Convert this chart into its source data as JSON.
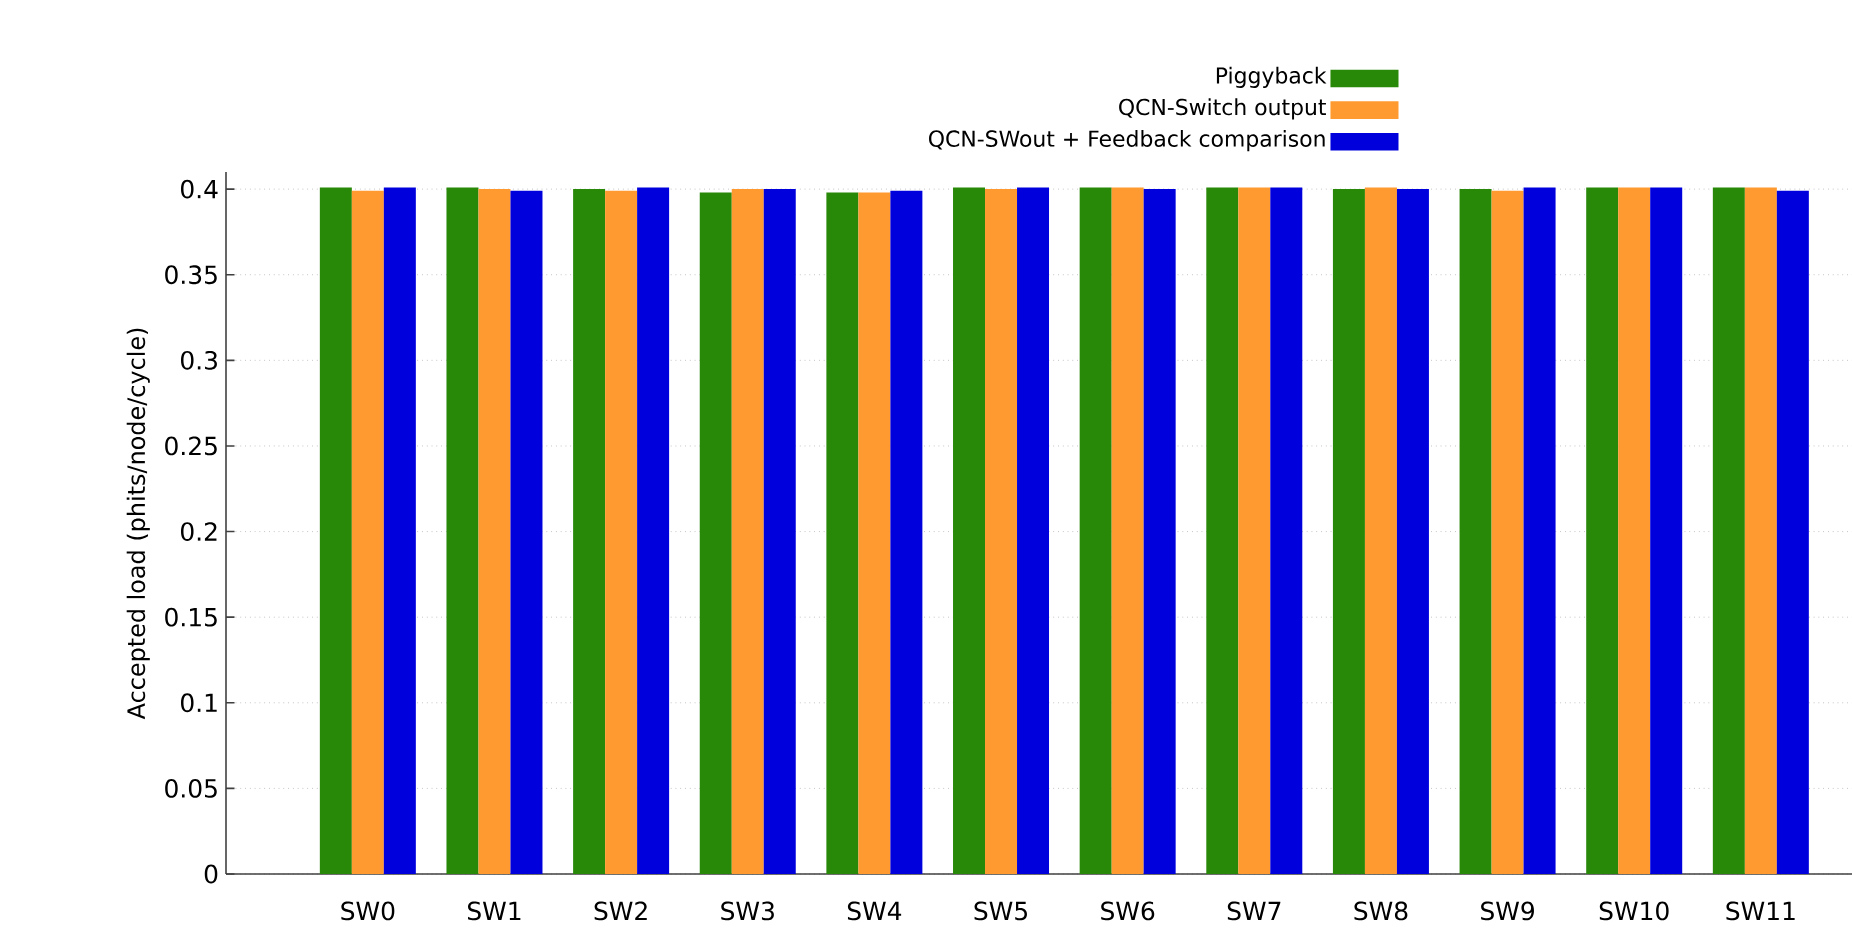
{
  "chart_data": {
    "type": "bar",
    "ylabel": "Accepted load (phits/node/cycle)",
    "categories": [
      "SW0",
      "SW1",
      "SW2",
      "SW3",
      "SW4",
      "SW5",
      "SW6",
      "SW7",
      "SW8",
      "SW9",
      "SW10",
      "SW11"
    ],
    "series": [
      {
        "name": "Piggyback",
        "color": "#288808",
        "values": [
          0.401,
          0.401,
          0.4,
          0.398,
          0.398,
          0.401,
          0.401,
          0.401,
          0.4,
          0.4,
          0.401,
          0.401
        ]
      },
      {
        "name": "QCN-Switch output",
        "color": "#ff9a30",
        "values": [
          0.399,
          0.4,
          0.399,
          0.4,
          0.398,
          0.4,
          0.401,
          0.401,
          0.401,
          0.399,
          0.401,
          0.401
        ]
      },
      {
        "name": "QCN-SWout + Feedback comparison",
        "color": "#0000dd",
        "values": [
          0.401,
          0.399,
          0.401,
          0.4,
          0.399,
          0.401,
          0.4,
          0.401,
          0.4,
          0.401,
          0.401,
          0.399
        ]
      }
    ],
    "ylim": [
      0,
      0.41
    ],
    "yticks": [
      0,
      0.05,
      0.1,
      0.15,
      0.2,
      0.25,
      0.3,
      0.35,
      0.4
    ],
    "grid": "y",
    "legend": "top right"
  }
}
